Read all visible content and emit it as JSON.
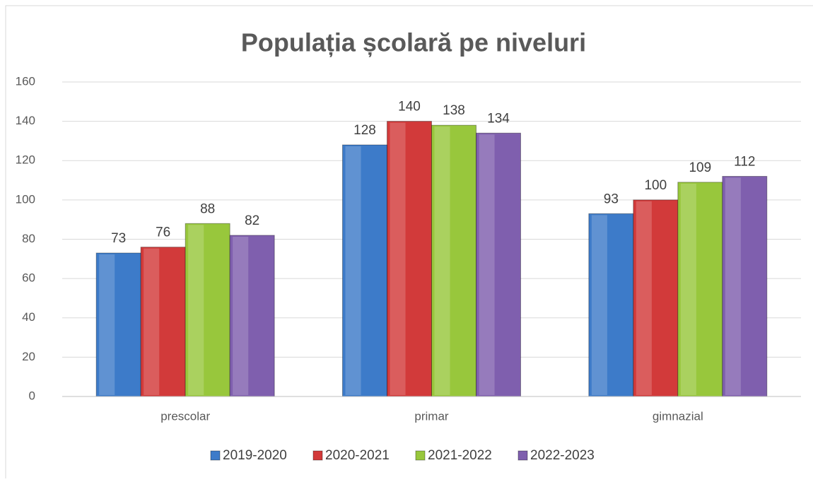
{
  "chart_data": {
    "type": "bar",
    "title": "Populația școlară pe niveluri",
    "categories": [
      "prescolar",
      "primar",
      "gimnazial"
    ],
    "series": [
      {
        "name": "2019-2020",
        "color": "#3d7bc9",
        "values": [
          73,
          128,
          93
        ]
      },
      {
        "name": "2020-2021",
        "color": "#d23a3a",
        "values": [
          76,
          140,
          100
        ]
      },
      {
        "name": "2021-2022",
        "color": "#98c73c",
        "values": [
          88,
          138,
          109
        ]
      },
      {
        "name": "2022-2023",
        "color": "#7f5fae",
        "values": [
          82,
          134,
          112
        ]
      }
    ],
    "ylim": [
      0,
      160
    ],
    "yticks": [
      0,
      20,
      40,
      60,
      80,
      100,
      120,
      140,
      160
    ],
    "grid": true,
    "legend": "bottom"
  }
}
